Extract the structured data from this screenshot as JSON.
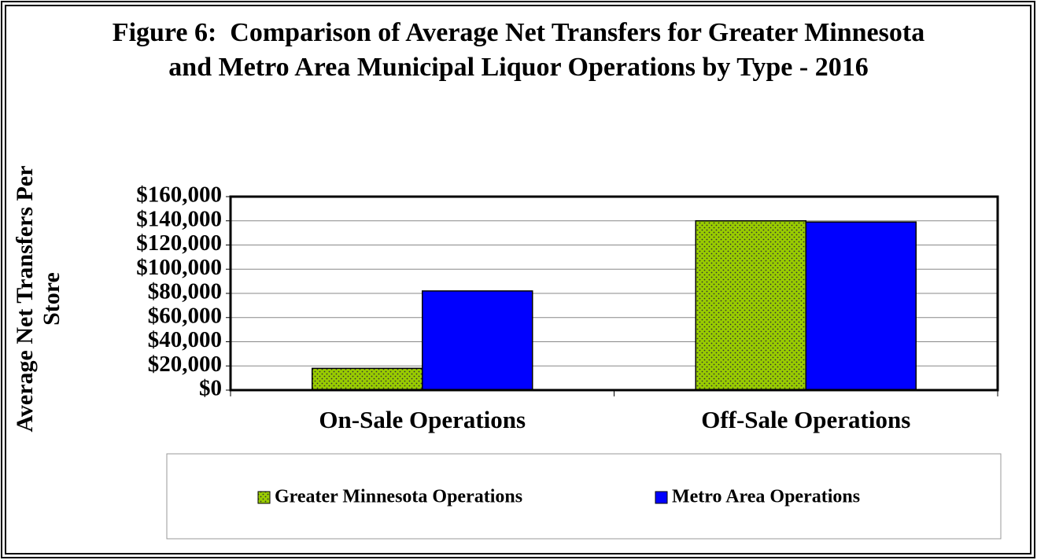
{
  "chart_data": {
    "type": "bar",
    "title": "Figure 6:  Comparison of Average Net Transfers for Greater Minnesota and Metro Area Municipal Liquor Operations by Type - 2016",
    "y_axis_label": "Average Net Transfers Per Store",
    "categories": [
      "On-Sale Operations",
      "Off-Sale Operations"
    ],
    "series": [
      {
        "name": "Greater Minnesota Operations",
        "color": "#99cc00",
        "pattern": "dotted",
        "values": [
          18000,
          140000
        ]
      },
      {
        "name": "Metro Area Operations",
        "color": "#0000ff",
        "values": [
          82000,
          139000
        ]
      }
    ],
    "ylim": [
      0,
      160000
    ],
    "yticks": [
      {
        "value": 0,
        "label": "$0"
      },
      {
        "value": 20000,
        "label": "$20,000"
      },
      {
        "value": 40000,
        "label": "$40,000"
      },
      {
        "value": 60000,
        "label": "$60,000"
      },
      {
        "value": 80000,
        "label": "$80,000"
      },
      {
        "value": 100000,
        "label": "$100,000"
      },
      {
        "value": 120000,
        "label": "$120,000"
      },
      {
        "value": 140000,
        "label": "$140,000"
      },
      {
        "value": 160000,
        "label": "$160,000"
      }
    ],
    "grid": true,
    "legend": "bottom"
  }
}
